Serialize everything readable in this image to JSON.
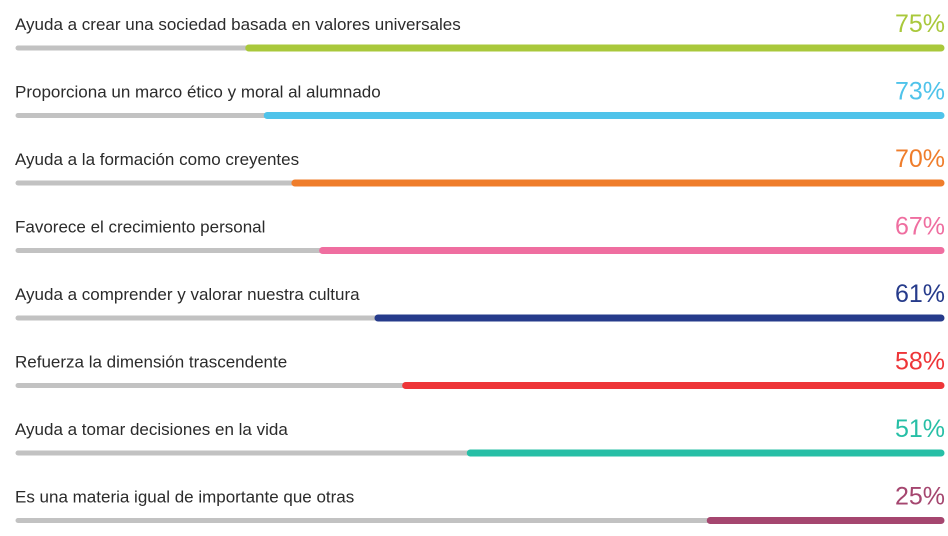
{
  "chart_data": {
    "type": "bar",
    "orientation": "horizontal",
    "categories": [
      "Ayuda a crear una sociedad basada en valores universales",
      "Proporciona un marco ético y moral al alumnado",
      "Ayuda a la formación como creyentes",
      "Favorece el crecimiento personal",
      "Ayuda a comprender y valorar nuestra cultura",
      "Refuerza la dimensión trascendente",
      "Ayuda a tomar decisiones en la vida",
      "Es una materia igual de importante que otras"
    ],
    "values": [
      75,
      73,
      70,
      67,
      61,
      58,
      51,
      25
    ],
    "value_labels": [
      "75%",
      "73%",
      "70%",
      "67%",
      "61%",
      "58%",
      "51%",
      "25%"
    ],
    "colors": [
      "#a9c83b",
      "#4fc3ea",
      "#ef7d2b",
      "#ef6ea0",
      "#263b8b",
      "#ee3538",
      "#27bfa6",
      "#a5466f"
    ],
    "track_color": "#c2c2c2",
    "xlim": [
      0,
      100
    ]
  }
}
